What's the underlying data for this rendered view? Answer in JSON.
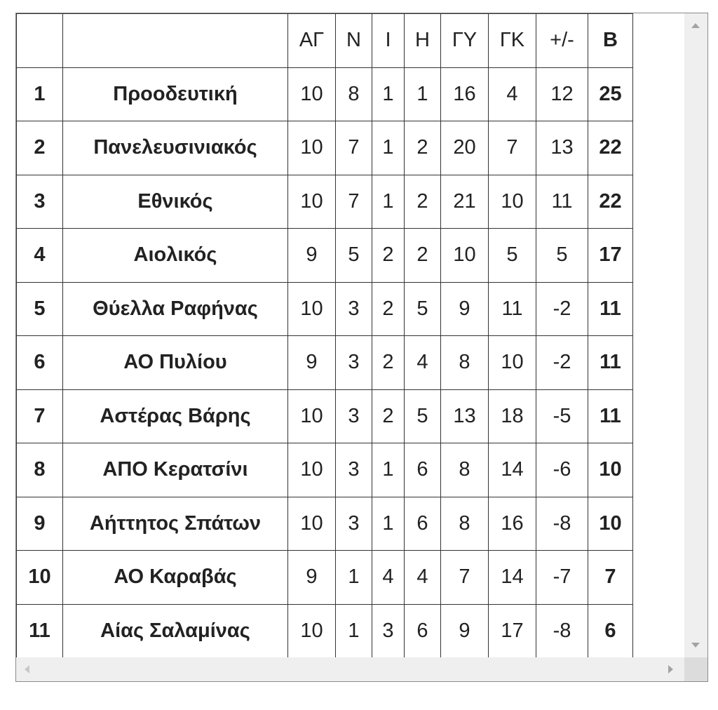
{
  "headers": [
    "",
    "",
    "ΑΓ",
    "Ν",
    "Ι",
    "Η",
    "ΓΥ",
    "ΓΚ",
    "+/-",
    "Β"
  ],
  "rows": [
    [
      "1",
      "Προοδευτική",
      "10",
      "8",
      "1",
      "1",
      "16",
      "4",
      "12",
      "25"
    ],
    [
      "2",
      "Πανελευσινιακός",
      "10",
      "7",
      "1",
      "2",
      "20",
      "7",
      "13",
      "22"
    ],
    [
      "3",
      "Εθνικός",
      "10",
      "7",
      "1",
      "2",
      "21",
      "10",
      "11",
      "22"
    ],
    [
      "4",
      "Αιολικός",
      "9",
      "5",
      "2",
      "2",
      "10",
      "5",
      "5",
      "17"
    ],
    [
      "5",
      "Θύελλα Ραφήνας",
      "10",
      "3",
      "2",
      "5",
      "9",
      "11",
      "-2",
      "11"
    ],
    [
      "6",
      "ΑΟ Πυλίου",
      "9",
      "3",
      "2",
      "4",
      "8",
      "10",
      "-2",
      "11"
    ],
    [
      "7",
      "Αστέρας Βάρης",
      "10",
      "3",
      "2",
      "5",
      "13",
      "18",
      "-5",
      "11"
    ],
    [
      "8",
      "ΑΠΟ Κερατσίνι",
      "10",
      "3",
      "1",
      "6",
      "8",
      "14",
      "-6",
      "10"
    ],
    [
      "9",
      "Αήττητος Σπάτων",
      "10",
      "3",
      "1",
      "6",
      "8",
      "16",
      "-8",
      "10"
    ],
    [
      "10",
      "ΑΟ Καραβάς",
      "9",
      "1",
      "4",
      "4",
      "7",
      "14",
      "-7",
      "7"
    ],
    [
      "11",
      "Αίας Σαλαμίνας",
      "10",
      "1",
      "3",
      "6",
      "9",
      "17",
      "-8",
      "6"
    ]
  ]
}
